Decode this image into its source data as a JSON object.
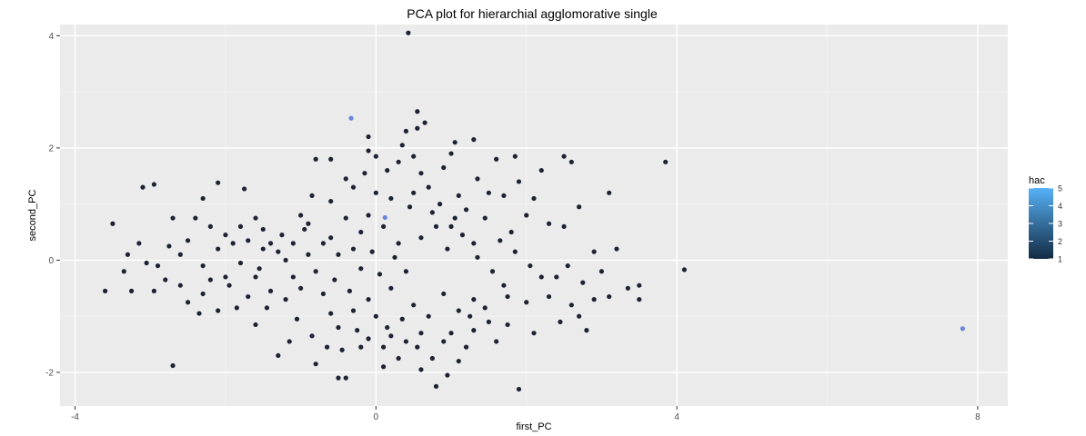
{
  "chart_data": {
    "type": "scatter",
    "title": "PCA plot for hierarchial agglomorative single",
    "xlabel": "first_PC",
    "ylabel": "second_PC",
    "xlim": [
      -4.2,
      8.4
    ],
    "ylim": [
      -2.6,
      4.2
    ],
    "xticks": [
      -4,
      0,
      4,
      8
    ],
    "xtick_labels": [
      "-4",
      "0",
      "4",
      "8"
    ],
    "yticks": [
      -2,
      0,
      2,
      4
    ],
    "ytick_labels": [
      "-2",
      "0",
      "2",
      "4"
    ],
    "grid": true,
    "legend": {
      "title": "hac",
      "position": "right",
      "type": "colorbar",
      "range": [
        1,
        5
      ],
      "labels": [
        "5",
        "4",
        "3",
        "2",
        "1"
      ],
      "low_color": "#132B43",
      "high_color": "#56B1F7"
    },
    "colors": {
      "panel": "#EBEBEB",
      "grid_major": "#FFFFFF",
      "grid_minor": "#F4F4F4",
      "cluster_1": "#1E2334",
      "cluster_high": "#6A86E0"
    },
    "points": [
      {
        "x": 0.43,
        "y": 4.05,
        "hac": 1
      },
      {
        "x": -0.33,
        "y": 2.53,
        "hac": 4
      },
      {
        "x": 0.12,
        "y": 0.76,
        "hac": 4
      },
      {
        "x": 7.8,
        "y": -1.22,
        "hac": 5
      },
      {
        "x": 0.55,
        "y": 2.65,
        "hac": 1
      },
      {
        "x": 0.65,
        "y": 2.45,
        "hac": 1
      },
      {
        "x": 0.4,
        "y": 2.3,
        "hac": 1
      },
      {
        "x": 0.55,
        "y": 2.35,
        "hac": 1
      },
      {
        "x": -0.1,
        "y": 2.2,
        "hac": 1
      },
      {
        "x": 1.3,
        "y": 2.15,
        "hac": 1
      },
      {
        "x": 1.05,
        "y": 2.1,
        "hac": 1
      },
      {
        "x": 3.85,
        "y": 1.75,
        "hac": 1
      },
      {
        "x": 4.1,
        "y": -0.17,
        "hac": 1
      },
      {
        "x": -3.6,
        "y": -0.55,
        "hac": 1
      },
      {
        "x": -3.5,
        "y": 0.65,
        "hac": 1
      },
      {
        "x": -3.1,
        "y": 1.3,
        "hac": 1
      },
      {
        "x": -2.95,
        "y": 1.35,
        "hac": 1
      },
      {
        "x": -3.3,
        "y": 0.1,
        "hac": 1
      },
      {
        "x": -3.35,
        "y": -0.2,
        "hac": 1
      },
      {
        "x": -3.25,
        "y": -0.55,
        "hac": 1
      },
      {
        "x": -2.7,
        "y": -1.88,
        "hac": 1
      },
      {
        "x": -2.7,
        "y": 0.75,
        "hac": 1
      },
      {
        "x": -2.4,
        "y": 0.75,
        "hac": 1
      },
      {
        "x": -2.3,
        "y": 1.1,
        "hac": 1
      },
      {
        "x": -2.1,
        "y": 1.38,
        "hac": 1
      },
      {
        "x": -1.75,
        "y": 1.27,
        "hac": 1
      },
      {
        "x": -2.2,
        "y": 0.6,
        "hac": 1
      },
      {
        "x": -2.0,
        "y": 0.45,
        "hac": 1
      },
      {
        "x": -1.9,
        "y": 0.3,
        "hac": 1
      },
      {
        "x": -1.8,
        "y": 0.6,
        "hac": 1
      },
      {
        "x": -1.6,
        "y": 0.75,
        "hac": 1
      },
      {
        "x": -1.5,
        "y": 0.55,
        "hac": 1
      },
      {
        "x": -1.4,
        "y": 0.3,
        "hac": 1
      },
      {
        "x": -1.3,
        "y": 0.15,
        "hac": 1
      },
      {
        "x": -1.2,
        "y": 0.0,
        "hac": 1
      },
      {
        "x": -1.1,
        "y": -0.3,
        "hac": 1
      },
      {
        "x": -1.0,
        "y": 0.8,
        "hac": 1
      },
      {
        "x": -0.9,
        "y": 0.65,
        "hac": 1
      },
      {
        "x": -0.85,
        "y": 1.15,
        "hac": 1
      },
      {
        "x": -0.8,
        "y": 1.8,
        "hac": 1
      },
      {
        "x": -0.6,
        "y": 0.4,
        "hac": 1
      },
      {
        "x": -0.6,
        "y": 1.05,
        "hac": 1
      },
      {
        "x": -0.6,
        "y": 1.8,
        "hac": 1
      },
      {
        "x": -0.4,
        "y": 1.45,
        "hac": 1
      },
      {
        "x": -0.3,
        "y": 1.3,
        "hac": 1
      },
      {
        "x": -0.5,
        "y": 0.1,
        "hac": 1
      },
      {
        "x": -0.3,
        "y": 0.2,
        "hac": 1
      },
      {
        "x": -0.2,
        "y": -0.15,
        "hac": 1
      },
      {
        "x": -0.1,
        "y": 1.95,
        "hac": 1
      },
      {
        "x": 0.0,
        "y": 1.85,
        "hac": 1
      },
      {
        "x": 0.0,
        "y": 1.2,
        "hac": 1
      },
      {
        "x": 0.2,
        "y": 1.1,
        "hac": 1
      },
      {
        "x": 0.3,
        "y": 1.75,
        "hac": 1
      },
      {
        "x": 0.5,
        "y": 1.85,
        "hac": 1
      },
      {
        "x": 0.6,
        "y": 1.55,
        "hac": 1
      },
      {
        "x": 0.7,
        "y": 1.3,
        "hac": 1
      },
      {
        "x": 0.9,
        "y": 1.65,
        "hac": 1
      },
      {
        "x": 1.0,
        "y": 1.9,
        "hac": 1
      },
      {
        "x": 1.1,
        "y": 1.15,
        "hac": 1
      },
      {
        "x": 1.2,
        "y": 0.9,
        "hac": 1
      },
      {
        "x": 0.8,
        "y": 0.6,
        "hac": 1
      },
      {
        "x": 0.6,
        "y": 0.4,
        "hac": 1
      },
      {
        "x": 1.0,
        "y": 0.6,
        "hac": 1
      },
      {
        "x": 1.3,
        "y": 0.3,
        "hac": 1
      },
      {
        "x": 1.5,
        "y": 1.2,
        "hac": 1
      },
      {
        "x": 1.6,
        "y": 1.8,
        "hac": 1
      },
      {
        "x": 1.85,
        "y": 1.85,
        "hac": 1
      },
      {
        "x": 1.9,
        "y": 1.4,
        "hac": 1
      },
      {
        "x": 2.0,
        "y": 0.8,
        "hac": 1
      },
      {
        "x": 1.8,
        "y": 0.5,
        "hac": 1
      },
      {
        "x": 2.2,
        "y": 1.6,
        "hac": 1
      },
      {
        "x": 2.5,
        "y": 1.85,
        "hac": 1
      },
      {
        "x": 2.6,
        "y": 1.75,
        "hac": 1
      },
      {
        "x": 2.3,
        "y": 0.65,
        "hac": 1
      },
      {
        "x": 2.5,
        "y": 0.6,
        "hac": 1
      },
      {
        "x": 2.7,
        "y": 0.95,
        "hac": 1
      },
      {
        "x": 3.1,
        "y": 1.2,
        "hac": 1
      },
      {
        "x": 3.2,
        "y": 0.2,
        "hac": 1
      },
      {
        "x": 2.9,
        "y": 0.15,
        "hac": 1
      },
      {
        "x": 2.2,
        "y": -0.3,
        "hac": 1
      },
      {
        "x": 2.4,
        "y": -0.3,
        "hac": 1
      },
      {
        "x": 2.3,
        "y": -0.65,
        "hac": 1
      },
      {
        "x": 2.6,
        "y": -0.8,
        "hac": 1
      },
      {
        "x": 2.7,
        "y": -1.0,
        "hac": 1
      },
      {
        "x": 2.8,
        "y": -1.25,
        "hac": 1
      },
      {
        "x": 2.9,
        "y": -0.7,
        "hac": 1
      },
      {
        "x": 3.0,
        "y": -0.2,
        "hac": 1
      },
      {
        "x": 3.1,
        "y": -0.65,
        "hac": 1
      },
      {
        "x": 3.35,
        "y": -0.5,
        "hac": 1
      },
      {
        "x": 3.5,
        "y": -0.45,
        "hac": 1
      },
      {
        "x": 3.5,
        "y": -0.7,
        "hac": 1
      },
      {
        "x": 1.7,
        "y": -0.45,
        "hac": 1
      },
      {
        "x": 2.0,
        "y": -0.75,
        "hac": 1
      },
      {
        "x": 1.5,
        "y": -1.1,
        "hac": 1
      },
      {
        "x": 1.3,
        "y": -1.25,
        "hac": 1
      },
      {
        "x": 1.2,
        "y": -1.55,
        "hac": 1
      },
      {
        "x": 1.1,
        "y": -1.8,
        "hac": 1
      },
      {
        "x": 0.9,
        "y": -1.45,
        "hac": 1
      },
      {
        "x": 0.6,
        "y": -1.3,
        "hac": 1
      },
      {
        "x": 0.4,
        "y": -1.45,
        "hac": 1
      },
      {
        "x": 0.3,
        "y": -1.75,
        "hac": 1
      },
      {
        "x": 0.1,
        "y": -1.55,
        "hac": 1
      },
      {
        "x": -0.1,
        "y": -1.4,
        "hac": 1
      },
      {
        "x": -0.2,
        "y": -1.55,
        "hac": 1
      },
      {
        "x": -0.4,
        "y": -2.1,
        "hac": 1
      },
      {
        "x": -0.5,
        "y": -2.1,
        "hac": 1
      },
      {
        "x": 0.1,
        "y": -1.9,
        "hac": 1
      },
      {
        "x": 0.6,
        "y": -1.95,
        "hac": 1
      },
      {
        "x": 0.8,
        "y": -2.25,
        "hac": 1
      },
      {
        "x": 1.9,
        "y": -2.3,
        "hac": 1
      },
      {
        "x": -0.8,
        "y": -1.85,
        "hac": 1
      },
      {
        "x": -1.3,
        "y": -1.7,
        "hac": 1
      },
      {
        "x": -1.6,
        "y": -1.15,
        "hac": 1
      },
      {
        "x": -2.1,
        "y": -0.9,
        "hac": 1
      },
      {
        "x": -2.3,
        "y": -0.6,
        "hac": 1
      },
      {
        "x": -2.5,
        "y": -0.75,
        "hac": 1
      },
      {
        "x": -2.8,
        "y": -0.35,
        "hac": 1
      },
      {
        "x": -2.9,
        "y": -0.1,
        "hac": 1
      },
      {
        "x": -2.6,
        "y": 0.1,
        "hac": 1
      },
      {
        "x": -2.3,
        "y": -0.1,
        "hac": 1
      },
      {
        "x": -2.0,
        "y": -0.3,
        "hac": 1
      },
      {
        "x": -1.8,
        "y": -0.05,
        "hac": 1
      },
      {
        "x": -1.6,
        "y": -0.3,
        "hac": 1
      },
      {
        "x": -1.4,
        "y": -0.55,
        "hac": 1
      },
      {
        "x": -1.2,
        "y": -0.7,
        "hac": 1
      },
      {
        "x": -1.0,
        "y": -0.5,
        "hac": 1
      },
      {
        "x": -0.8,
        "y": -0.2,
        "hac": 1
      },
      {
        "x": -0.7,
        "y": -0.6,
        "hac": 1
      },
      {
        "x": -0.6,
        "y": -0.95,
        "hac": 1
      },
      {
        "x": -0.5,
        "y": -1.2,
        "hac": 1
      },
      {
        "x": -0.3,
        "y": -0.9,
        "hac": 1
      },
      {
        "x": -0.1,
        "y": -0.7,
        "hac": 1
      },
      {
        "x": 0.0,
        "y": -1.0,
        "hac": 1
      },
      {
        "x": 0.2,
        "y": -0.5,
        "hac": 1
      },
      {
        "x": 0.4,
        "y": -0.2,
        "hac": 1
      },
      {
        "x": 0.5,
        "y": -0.8,
        "hac": 1
      },
      {
        "x": 0.7,
        "y": -1.0,
        "hac": 1
      },
      {
        "x": 0.9,
        "y": -0.6,
        "hac": 1
      },
      {
        "x": 1.1,
        "y": -0.9,
        "hac": 1
      },
      {
        "x": 1.3,
        "y": -0.7,
        "hac": 1
      },
      {
        "x": 0.3,
        "y": 0.3,
        "hac": 1
      },
      {
        "x": 0.1,
        "y": 0.6,
        "hac": 1
      },
      {
        "x": -0.1,
        "y": 0.8,
        "hac": 1
      },
      {
        "x": -0.2,
        "y": 0.5,
        "hac": 1
      },
      {
        "x": -0.4,
        "y": 0.75,
        "hac": 1
      },
      {
        "x": -0.7,
        "y": 0.3,
        "hac": 1
      },
      {
        "x": -0.9,
        "y": 0.1,
        "hac": 1
      },
      {
        "x": -1.1,
        "y": 0.3,
        "hac": 1
      },
      {
        "x": -1.5,
        "y": 0.2,
        "hac": 1
      },
      {
        "x": -1.7,
        "y": 0.35,
        "hac": 1
      },
      {
        "x": -2.1,
        "y": 0.2,
        "hac": 1
      },
      {
        "x": -2.5,
        "y": 0.35,
        "hac": 1
      },
      {
        "x": -2.75,
        "y": 0.25,
        "hac": 1
      },
      {
        "x": -3.15,
        "y": 0.3,
        "hac": 1
      },
      {
        "x": -1.25,
        "y": 0.45,
        "hac": 1
      },
      {
        "x": -0.95,
        "y": 0.55,
        "hac": 1
      },
      {
        "x": -1.55,
        "y": -0.15,
        "hac": 1
      },
      {
        "x": -1.95,
        "y": -0.45,
        "hac": 1
      },
      {
        "x": -2.2,
        "y": -0.35,
        "hac": 1
      },
      {
        "x": -2.6,
        "y": -0.45,
        "hac": 1
      },
      {
        "x": -2.95,
        "y": -0.55,
        "hac": 1
      },
      {
        "x": -3.05,
        "y": -0.05,
        "hac": 1
      },
      {
        "x": -1.45,
        "y": -0.85,
        "hac": 1
      },
      {
        "x": -1.05,
        "y": -1.05,
        "hac": 1
      },
      {
        "x": -0.85,
        "y": -1.35,
        "hac": 1
      },
      {
        "x": -0.45,
        "y": -1.6,
        "hac": 1
      },
      {
        "x": -0.25,
        "y": -1.25,
        "hac": 1
      },
      {
        "x": 0.15,
        "y": -1.2,
        "hac": 1
      },
      {
        "x": 0.35,
        "y": -1.05,
        "hac": 1
      },
      {
        "x": 0.55,
        "y": -1.55,
        "hac": 1
      },
      {
        "x": 0.75,
        "y": -1.75,
        "hac": 1
      },
      {
        "x": 1.0,
        "y": -1.3,
        "hac": 1
      },
      {
        "x": 1.25,
        "y": -1.0,
        "hac": 1
      },
      {
        "x": 1.45,
        "y": -0.85,
        "hac": 1
      },
      {
        "x": 1.75,
        "y": -0.65,
        "hac": 1
      },
      {
        "x": 1.55,
        "y": -0.2,
        "hac": 1
      },
      {
        "x": 1.35,
        "y": 0.05,
        "hac": 1
      },
      {
        "x": 1.15,
        "y": 0.45,
        "hac": 1
      },
      {
        "x": 0.95,
        "y": 0.2,
        "hac": 1
      },
      {
        "x": 0.75,
        "y": 0.85,
        "hac": 1
      },
      {
        "x": 0.45,
        "y": 0.95,
        "hac": 1
      },
      {
        "x": 1.45,
        "y": 0.75,
        "hac": 1
      },
      {
        "x": 1.65,
        "y": 0.35,
        "hac": 1
      },
      {
        "x": 1.85,
        "y": 0.15,
        "hac": 1
      },
      {
        "x": 2.05,
        "y": -0.1,
        "hac": 1
      },
      {
        "x": 2.55,
        "y": -0.1,
        "hac": 1
      },
      {
        "x": 2.75,
        "y": -0.4,
        "hac": 1
      },
      {
        "x": 2.45,
        "y": -1.1,
        "hac": 1
      },
      {
        "x": 2.1,
        "y": -1.3,
        "hac": 1
      },
      {
        "x": 1.75,
        "y": -1.15,
        "hac": 1
      },
      {
        "x": 1.6,
        "y": -1.45,
        "hac": 1
      },
      {
        "x": 0.95,
        "y": -2.05,
        "hac": 1
      },
      {
        "x": 0.2,
        "y": -1.35,
        "hac": 1
      },
      {
        "x": -0.55,
        "y": -0.35,
        "hac": 1
      },
      {
        "x": -0.35,
        "y": -0.55,
        "hac": 1
      },
      {
        "x": 0.05,
        "y": -0.25,
        "hac": 1
      },
      {
        "x": 0.25,
        "y": 0.05,
        "hac": 1
      },
      {
        "x": -0.05,
        "y": 0.15,
        "hac": 1
      },
      {
        "x": 0.5,
        "y": 1.2,
        "hac": 1
      },
      {
        "x": 0.35,
        "y": 2.05,
        "hac": 1
      },
      {
        "x": 0.15,
        "y": 1.6,
        "hac": 1
      },
      {
        "x": -0.15,
        "y": 1.55,
        "hac": 1
      },
      {
        "x": 0.85,
        "y": 1.0,
        "hac": 1
      },
      {
        "x": 1.05,
        "y": 0.75,
        "hac": 1
      },
      {
        "x": 1.35,
        "y": 1.45,
        "hac": 1
      },
      {
        "x": 1.7,
        "y": 1.15,
        "hac": 1
      },
      {
        "x": 2.1,
        "y": 1.1,
        "hac": 1
      },
      {
        "x": -1.7,
        "y": -0.65,
        "hac": 1
      },
      {
        "x": -1.85,
        "y": -0.85,
        "hac": 1
      },
      {
        "x": -2.35,
        "y": -0.95,
        "hac": 1
      },
      {
        "x": -0.65,
        "y": -1.55,
        "hac": 1
      },
      {
        "x": -1.15,
        "y": -1.45,
        "hac": 1
      }
    ]
  }
}
